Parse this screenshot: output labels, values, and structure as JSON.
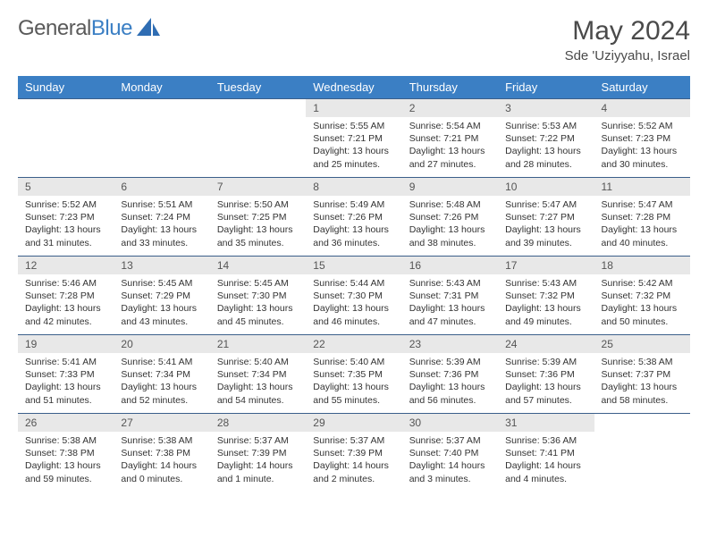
{
  "logo": {
    "word1": "General",
    "word2": "Blue"
  },
  "title": "May 2024",
  "location": "Sde 'Uziyyahu, Israel",
  "colors": {
    "header_bg": "#3b7fc4",
    "header_text": "#ffffff",
    "daynum_bg": "#e8e8e8",
    "rule": "#3b5f8a",
    "logo_gray": "#5a5a5a",
    "logo_blue": "#3b7fc4",
    "sail_fill": "#2f6db3"
  },
  "typography": {
    "title_fontsize": 30,
    "location_fontsize": 15,
    "dayheader_fontsize": 13,
    "daynum_fontsize": 12,
    "cell_fontsize": 10.5
  },
  "day_headers": [
    "Sunday",
    "Monday",
    "Tuesday",
    "Wednesday",
    "Thursday",
    "Friday",
    "Saturday"
  ],
  "labels": {
    "sunrise": "Sunrise:",
    "sunset": "Sunset:",
    "daylight": "Daylight:"
  },
  "weeks": [
    [
      null,
      null,
      null,
      {
        "n": "1",
        "sunrise": "5:55 AM",
        "sunset": "7:21 PM",
        "daylight": "13 hours and 25 minutes."
      },
      {
        "n": "2",
        "sunrise": "5:54 AM",
        "sunset": "7:21 PM",
        "daylight": "13 hours and 27 minutes."
      },
      {
        "n": "3",
        "sunrise": "5:53 AM",
        "sunset": "7:22 PM",
        "daylight": "13 hours and 28 minutes."
      },
      {
        "n": "4",
        "sunrise": "5:52 AM",
        "sunset": "7:23 PM",
        "daylight": "13 hours and 30 minutes."
      }
    ],
    [
      {
        "n": "5",
        "sunrise": "5:52 AM",
        "sunset": "7:23 PM",
        "daylight": "13 hours and 31 minutes."
      },
      {
        "n": "6",
        "sunrise": "5:51 AM",
        "sunset": "7:24 PM",
        "daylight": "13 hours and 33 minutes."
      },
      {
        "n": "7",
        "sunrise": "5:50 AM",
        "sunset": "7:25 PM",
        "daylight": "13 hours and 35 minutes."
      },
      {
        "n": "8",
        "sunrise": "5:49 AM",
        "sunset": "7:26 PM",
        "daylight": "13 hours and 36 minutes."
      },
      {
        "n": "9",
        "sunrise": "5:48 AM",
        "sunset": "7:26 PM",
        "daylight": "13 hours and 38 minutes."
      },
      {
        "n": "10",
        "sunrise": "5:47 AM",
        "sunset": "7:27 PM",
        "daylight": "13 hours and 39 minutes."
      },
      {
        "n": "11",
        "sunrise": "5:47 AM",
        "sunset": "7:28 PM",
        "daylight": "13 hours and 40 minutes."
      }
    ],
    [
      {
        "n": "12",
        "sunrise": "5:46 AM",
        "sunset": "7:28 PM",
        "daylight": "13 hours and 42 minutes."
      },
      {
        "n": "13",
        "sunrise": "5:45 AM",
        "sunset": "7:29 PM",
        "daylight": "13 hours and 43 minutes."
      },
      {
        "n": "14",
        "sunrise": "5:45 AM",
        "sunset": "7:30 PM",
        "daylight": "13 hours and 45 minutes."
      },
      {
        "n": "15",
        "sunrise": "5:44 AM",
        "sunset": "7:30 PM",
        "daylight": "13 hours and 46 minutes."
      },
      {
        "n": "16",
        "sunrise": "5:43 AM",
        "sunset": "7:31 PM",
        "daylight": "13 hours and 47 minutes."
      },
      {
        "n": "17",
        "sunrise": "5:43 AM",
        "sunset": "7:32 PM",
        "daylight": "13 hours and 49 minutes."
      },
      {
        "n": "18",
        "sunrise": "5:42 AM",
        "sunset": "7:32 PM",
        "daylight": "13 hours and 50 minutes."
      }
    ],
    [
      {
        "n": "19",
        "sunrise": "5:41 AM",
        "sunset": "7:33 PM",
        "daylight": "13 hours and 51 minutes."
      },
      {
        "n": "20",
        "sunrise": "5:41 AM",
        "sunset": "7:34 PM",
        "daylight": "13 hours and 52 minutes."
      },
      {
        "n": "21",
        "sunrise": "5:40 AM",
        "sunset": "7:34 PM",
        "daylight": "13 hours and 54 minutes."
      },
      {
        "n": "22",
        "sunrise": "5:40 AM",
        "sunset": "7:35 PM",
        "daylight": "13 hours and 55 minutes."
      },
      {
        "n": "23",
        "sunrise": "5:39 AM",
        "sunset": "7:36 PM",
        "daylight": "13 hours and 56 minutes."
      },
      {
        "n": "24",
        "sunrise": "5:39 AM",
        "sunset": "7:36 PM",
        "daylight": "13 hours and 57 minutes."
      },
      {
        "n": "25",
        "sunrise": "5:38 AM",
        "sunset": "7:37 PM",
        "daylight": "13 hours and 58 minutes."
      }
    ],
    [
      {
        "n": "26",
        "sunrise": "5:38 AM",
        "sunset": "7:38 PM",
        "daylight": "13 hours and 59 minutes."
      },
      {
        "n": "27",
        "sunrise": "5:38 AM",
        "sunset": "7:38 PM",
        "daylight": "14 hours and 0 minutes."
      },
      {
        "n": "28",
        "sunrise": "5:37 AM",
        "sunset": "7:39 PM",
        "daylight": "14 hours and 1 minute."
      },
      {
        "n": "29",
        "sunrise": "5:37 AM",
        "sunset": "7:39 PM",
        "daylight": "14 hours and 2 minutes."
      },
      {
        "n": "30",
        "sunrise": "5:37 AM",
        "sunset": "7:40 PM",
        "daylight": "14 hours and 3 minutes."
      },
      {
        "n": "31",
        "sunrise": "5:36 AM",
        "sunset": "7:41 PM",
        "daylight": "14 hours and 4 minutes."
      },
      null
    ]
  ]
}
